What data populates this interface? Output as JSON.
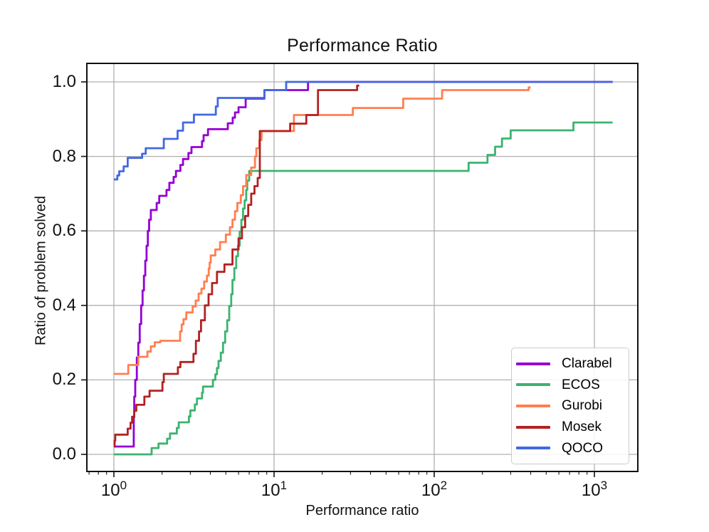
{
  "chart_data": {
    "type": "line",
    "subtype": "step-performance-profile",
    "title": "Performance Ratio",
    "xlabel": "Performance ratio",
    "ylabel": "Ratio of problem solved",
    "x_scale": "log10",
    "xlim": [
      0.685,
      1866
    ],
    "ylim": [
      -0.046,
      1.046
    ],
    "grid": true,
    "grid_color": "#b0b0b0",
    "axis_color": "#111111",
    "legend_position": "lower right",
    "x_ticks": [
      {
        "base": "10",
        "exp": "0",
        "value": 1
      },
      {
        "base": "10",
        "exp": "1",
        "value": 10
      },
      {
        "base": "10",
        "exp": "2",
        "value": 100
      },
      {
        "base": "10",
        "exp": "3",
        "value": 1000
      }
    ],
    "y_ticks": [
      {
        "label": "0.0",
        "value": 0.0
      },
      {
        "label": "0.2",
        "value": 0.2
      },
      {
        "label": "0.4",
        "value": 0.4
      },
      {
        "label": "0.6",
        "value": 0.6
      },
      {
        "label": "0.8",
        "value": 0.8
      },
      {
        "label": "1.0",
        "value": 1.0
      }
    ],
    "series": [
      {
        "name": "Clarabel",
        "color": "#9400d3",
        "points": [
          [
            1.0,
            0.021
          ],
          [
            1.33,
            0.1
          ],
          [
            1.34,
            0.155
          ],
          [
            1.36,
            0.2
          ],
          [
            1.39,
            0.26
          ],
          [
            1.42,
            0.3
          ],
          [
            1.45,
            0.35
          ],
          [
            1.48,
            0.4
          ],
          [
            1.51,
            0.44
          ],
          [
            1.54,
            0.48
          ],
          [
            1.57,
            0.52
          ],
          [
            1.6,
            0.56
          ],
          [
            1.63,
            0.6
          ],
          [
            1.66,
            0.63
          ],
          [
            1.7,
            0.656
          ],
          [
            1.85,
            0.675
          ],
          [
            1.92,
            0.694
          ],
          [
            2.13,
            0.71
          ],
          [
            2.22,
            0.729
          ],
          [
            2.36,
            0.745
          ],
          [
            2.44,
            0.761
          ],
          [
            2.6,
            0.777
          ],
          [
            2.7,
            0.793
          ],
          [
            2.92,
            0.809
          ],
          [
            3.05,
            0.825
          ],
          [
            3.55,
            0.841
          ],
          [
            3.63,
            0.857
          ],
          [
            3.87,
            0.873
          ],
          [
            5.14,
            0.889
          ],
          [
            5.52,
            0.904
          ],
          [
            5.7,
            0.918
          ],
          [
            6.0,
            0.932
          ],
          [
            6.65,
            0.955
          ],
          [
            8.7,
            0.978
          ],
          [
            16.3,
            1.0
          ],
          [
            1300,
            1.0
          ]
        ]
      },
      {
        "name": "ECOS",
        "color": "#3cb371",
        "points": [
          [
            1.0,
            0.0
          ],
          [
            1.72,
            0.017
          ],
          [
            1.9,
            0.029
          ],
          [
            2.15,
            0.042
          ],
          [
            2.24,
            0.056
          ],
          [
            2.47,
            0.071
          ],
          [
            2.54,
            0.086
          ],
          [
            2.94,
            0.102
          ],
          [
            3.0,
            0.118
          ],
          [
            3.2,
            0.134
          ],
          [
            3.3,
            0.15
          ],
          [
            3.55,
            0.166
          ],
          [
            3.6,
            0.182
          ],
          [
            4.15,
            0.2
          ],
          [
            4.3,
            0.215
          ],
          [
            4.4,
            0.232
          ],
          [
            4.5,
            0.251
          ],
          [
            4.65,
            0.273
          ],
          [
            4.8,
            0.3
          ],
          [
            4.95,
            0.33
          ],
          [
            5.1,
            0.36
          ],
          [
            5.25,
            0.398
          ],
          [
            5.4,
            0.43
          ],
          [
            5.5,
            0.468
          ],
          [
            5.65,
            0.5
          ],
          [
            5.8,
            0.532
          ],
          [
            5.95,
            0.56
          ],
          [
            6.1,
            0.598
          ],
          [
            6.25,
            0.63
          ],
          [
            6.4,
            0.66
          ],
          [
            6.55,
            0.682
          ],
          [
            6.7,
            0.71
          ],
          [
            6.8,
            0.735
          ],
          [
            7.0,
            0.761
          ],
          [
            164,
            0.783
          ],
          [
            215,
            0.804
          ],
          [
            240,
            0.826
          ],
          [
            265,
            0.848
          ],
          [
            300,
            0.87
          ],
          [
            740,
            0.891
          ],
          [
            1300,
            0.891
          ]
        ]
      },
      {
        "name": "Gurobi",
        "color": "#ff7f50",
        "points": [
          [
            1.0,
            0.216
          ],
          [
            1.23,
            0.24
          ],
          [
            1.42,
            0.262
          ],
          [
            1.62,
            0.276
          ],
          [
            1.7,
            0.29
          ],
          [
            1.8,
            0.301
          ],
          [
            1.95,
            0.305
          ],
          [
            2.59,
            0.33
          ],
          [
            2.65,
            0.349
          ],
          [
            2.72,
            0.363
          ],
          [
            2.83,
            0.381
          ],
          [
            3.1,
            0.397
          ],
          [
            3.24,
            0.413
          ],
          [
            3.38,
            0.432
          ],
          [
            3.52,
            0.445
          ],
          [
            3.66,
            0.464
          ],
          [
            3.81,
            0.48
          ],
          [
            3.91,
            0.499
          ],
          [
            3.96,
            0.515
          ],
          [
            4.02,
            0.534
          ],
          [
            4.3,
            0.55
          ],
          [
            4.6,
            0.57
          ],
          [
            5.0,
            0.59
          ],
          [
            5.3,
            0.61
          ],
          [
            5.5,
            0.63
          ],
          [
            5.7,
            0.653
          ],
          [
            5.9,
            0.675
          ],
          [
            6.2,
            0.696
          ],
          [
            6.4,
            0.72
          ],
          [
            6.7,
            0.75
          ],
          [
            7.2,
            0.77
          ],
          [
            7.6,
            0.8
          ],
          [
            7.75,
            0.822
          ],
          [
            8.1,
            0.844
          ],
          [
            8.35,
            0.868
          ],
          [
            13.3,
            0.911
          ],
          [
            31.0,
            0.93
          ],
          [
            64.0,
            0.955
          ],
          [
            112.0,
            0.978
          ],
          [
            389.0,
            0.985
          ],
          [
            400.0,
            0.985
          ]
        ]
      },
      {
        "name": "Mosek",
        "color": "#b22222",
        "points": [
          [
            1.0,
            0.021
          ],
          [
            1.01,
            0.037
          ],
          [
            1.02,
            0.053
          ],
          [
            1.22,
            0.069
          ],
          [
            1.27,
            0.085
          ],
          [
            1.3,
            0.101
          ],
          [
            1.34,
            0.117
          ],
          [
            1.38,
            0.133
          ],
          [
            1.55,
            0.155
          ],
          [
            1.67,
            0.171
          ],
          [
            2.01,
            0.194
          ],
          [
            2.05,
            0.216
          ],
          [
            2.51,
            0.234
          ],
          [
            2.6,
            0.248
          ],
          [
            3.14,
            0.27
          ],
          [
            3.25,
            0.305
          ],
          [
            3.4,
            0.33
          ],
          [
            3.5,
            0.36
          ],
          [
            3.7,
            0.4
          ],
          [
            3.9,
            0.43
          ],
          [
            4.1,
            0.46
          ],
          [
            4.4,
            0.49
          ],
          [
            4.9,
            0.51
          ],
          [
            5.5,
            0.55
          ],
          [
            6.0,
            0.58
          ],
          [
            6.3,
            0.61
          ],
          [
            6.6,
            0.64
          ],
          [
            6.9,
            0.67
          ],
          [
            7.2,
            0.7
          ],
          [
            7.55,
            0.72
          ],
          [
            7.9,
            0.742
          ],
          [
            8.15,
            0.868
          ],
          [
            12.6,
            0.888
          ],
          [
            15.9,
            0.911
          ],
          [
            18.8,
            0.978
          ],
          [
            33.0,
            0.99
          ],
          [
            34.0,
            0.99
          ]
        ]
      },
      {
        "name": "QOCO",
        "color": "#4169e1",
        "points": [
          [
            1.0,
            0.738
          ],
          [
            1.05,
            0.749
          ],
          [
            1.08,
            0.76
          ],
          [
            1.15,
            0.773
          ],
          [
            1.22,
            0.796
          ],
          [
            1.5,
            0.807
          ],
          [
            1.58,
            0.822
          ],
          [
            2.05,
            0.847
          ],
          [
            2.5,
            0.869
          ],
          [
            2.7,
            0.891
          ],
          [
            3.16,
            0.912
          ],
          [
            4.33,
            0.934
          ],
          [
            4.45,
            0.957
          ],
          [
            8.7,
            0.978
          ],
          [
            11.9,
            1.0
          ],
          [
            1300,
            1.0
          ]
        ]
      }
    ]
  }
}
